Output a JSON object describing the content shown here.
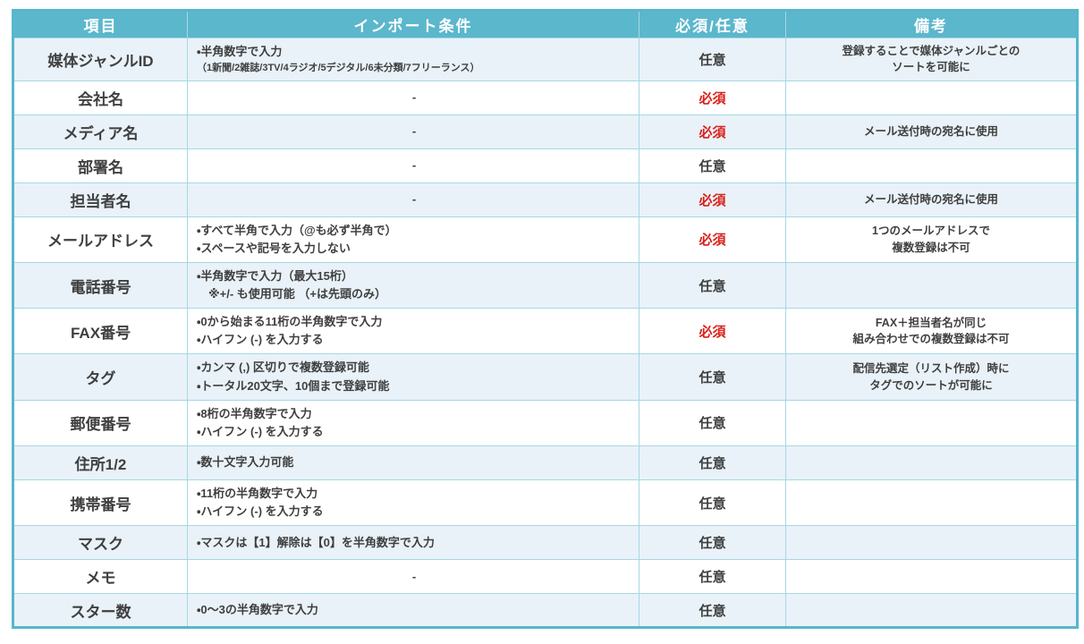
{
  "table": {
    "headers": [
      "項目",
      "インポート条件",
      "必須/任意",
      "備考"
    ],
    "colors": {
      "header_bg": "#5bb7cc",
      "header_text": "#ffffff",
      "row_alt_bg": "#e9f2f8",
      "row_bg": "#ffffff",
      "grid_line": "#a5d8e4",
      "outer_border": "#57b6cd",
      "body_text": "#3f3f3f",
      "required_red": "#d9201a"
    },
    "rows": [
      {
        "item": "媒体ジャンルID",
        "conditions": [
          {
            "text": "・半角数字で入力",
            "small": false
          },
          {
            "text": "（1新聞/2雑誌/3TV/4ラジオ/5デジタル/6未分類/7フリーランス）",
            "small": true
          }
        ],
        "cond_align": "left",
        "required": "任意",
        "required_emphasis": false,
        "remarks": [
          "登録することで媒体ジャンルごとの",
          "ソートを可能に"
        ]
      },
      {
        "item": "会社名",
        "conditions": [
          {
            "text": "-",
            "small": false
          }
        ],
        "cond_align": "center",
        "required": "必須",
        "required_emphasis": true,
        "remarks": []
      },
      {
        "item": "メディア名",
        "conditions": [
          {
            "text": "-",
            "small": false
          }
        ],
        "cond_align": "center",
        "required": "必須",
        "required_emphasis": true,
        "remarks": [
          "メール送付時の宛名に使用"
        ]
      },
      {
        "item": "部署名",
        "conditions": [
          {
            "text": "-",
            "small": false
          }
        ],
        "cond_align": "center",
        "required": "任意",
        "required_emphasis": false,
        "remarks": []
      },
      {
        "item": "担当者名",
        "conditions": [
          {
            "text": "-",
            "small": false
          }
        ],
        "cond_align": "center",
        "required": "必須",
        "required_emphasis": true,
        "remarks": [
          "メール送付時の宛名に使用"
        ]
      },
      {
        "item": "メールアドレス",
        "conditions": [
          {
            "text": "・すべて半角で入力（@も必ず半角で）",
            "small": false
          },
          {
            "text": "・スペースや記号を入力しない",
            "small": false
          }
        ],
        "cond_align": "left",
        "required": "必須",
        "required_emphasis": true,
        "remarks": [
          "1つのメールアドレスで",
          "複数登録は不可"
        ]
      },
      {
        "item": "電話番号",
        "conditions": [
          {
            "text": "・半角数字で入力（最大15桁）",
            "small": false
          },
          {
            "text": "　※+/- も使用可能 （+は先頭のみ）",
            "small": false
          }
        ],
        "cond_align": "left",
        "required": "任意",
        "required_emphasis": false,
        "remarks": []
      },
      {
        "item": "FAX番号",
        "conditions": [
          {
            "text": "・0から始まる11桁の半角数字で入力",
            "small": false
          },
          {
            "text": "・ハイフン (-) を入力する",
            "small": false
          }
        ],
        "cond_align": "left",
        "required": "必須",
        "required_emphasis": true,
        "remarks": [
          "FAX＋担当者名が同じ",
          "組み合わせでの複数登録は不可"
        ]
      },
      {
        "item": "タグ",
        "conditions": [
          {
            "text": "・カンマ (,) 区切りで複数登録可能",
            "small": false
          },
          {
            "text": "・トータル20文字、10個まで登録可能",
            "small": false
          }
        ],
        "cond_align": "left",
        "required": "任意",
        "required_emphasis": false,
        "remarks": [
          "配信先選定（リスト作成）時に",
          "タグでのソートが可能に"
        ]
      },
      {
        "item": "郵便番号",
        "conditions": [
          {
            "text": "・8桁の半角数字で入力",
            "small": false
          },
          {
            "text": "・ハイフン (-) を入力する",
            "small": false
          }
        ],
        "cond_align": "left",
        "required": "任意",
        "required_emphasis": false,
        "remarks": []
      },
      {
        "item": "住所1/2",
        "conditions": [
          {
            "text": "・数十文字入力可能",
            "small": false
          }
        ],
        "cond_align": "left",
        "required": "任意",
        "required_emphasis": false,
        "remarks": []
      },
      {
        "item": "携帯番号",
        "conditions": [
          {
            "text": "・11桁の半角数字で入力",
            "small": false
          },
          {
            "text": "・ハイフン (-) を入力する",
            "small": false
          }
        ],
        "cond_align": "left",
        "required": "任意",
        "required_emphasis": false,
        "remarks": []
      },
      {
        "item": "マスク",
        "conditions": [
          {
            "text": "・マスクは【1】解除は【0】を半角数字で入力",
            "small": false
          }
        ],
        "cond_align": "left",
        "required": "任意",
        "required_emphasis": false,
        "remarks": []
      },
      {
        "item": "メモ",
        "conditions": [
          {
            "text": "-",
            "small": false
          }
        ],
        "cond_align": "center",
        "required": "任意",
        "required_emphasis": false,
        "remarks": []
      },
      {
        "item": "スター数",
        "conditions": [
          {
            "text": "・0～3の半角数字で入力",
            "small": false
          }
        ],
        "cond_align": "left",
        "required": "任意",
        "required_emphasis": false,
        "remarks": []
      }
    ]
  }
}
